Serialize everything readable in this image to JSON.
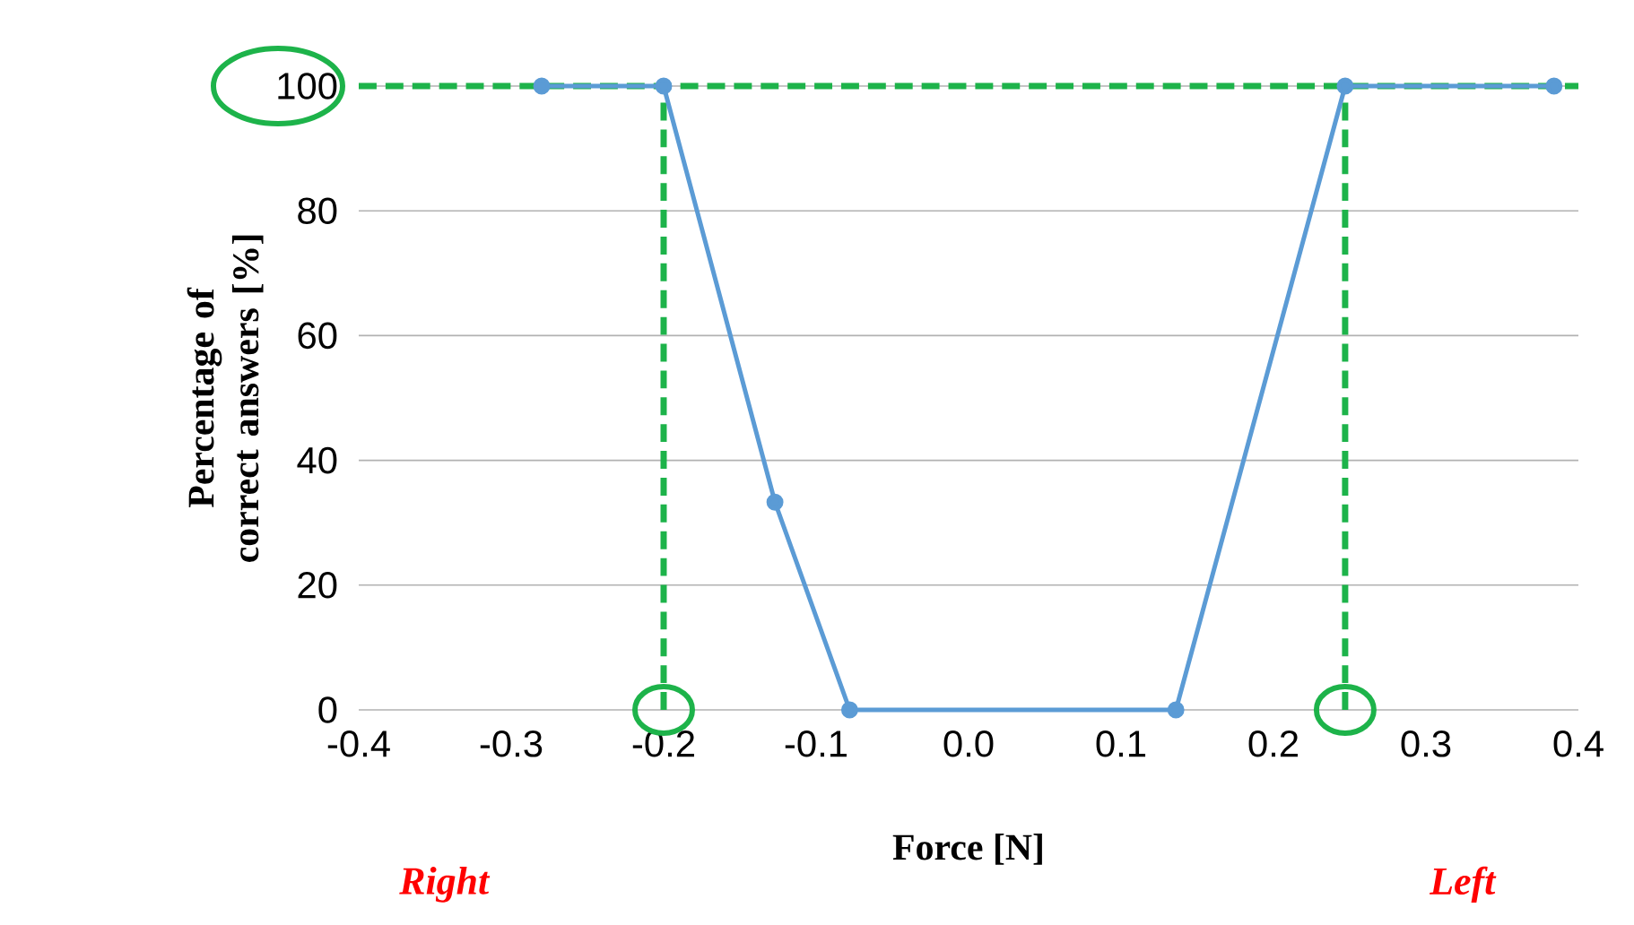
{
  "chart_data": {
    "type": "line",
    "xlabel": "Force [N]",
    "ylabel": "Percentage of correct answers [%]",
    "annotations": [
      "Right",
      "Left"
    ],
    "series": [
      {
        "color": "#5b9bd5",
        "x": [
          -0.28,
          -0.2,
          -0.127,
          -0.078,
          0.136,
          0.247,
          0.384
        ],
        "values": [
          100,
          100,
          33.3,
          0,
          0,
          100,
          100
        ]
      }
    ],
    "xlim": [
      -0.4,
      0.4
    ],
    "xticks": [
      {
        "value": -0.4,
        "label": "-0.4"
      },
      {
        "value": -0.3,
        "label": "-0.3"
      },
      {
        "value": -0.2,
        "label": "-0.2"
      },
      {
        "value": -0.1,
        "label": "-0.1"
      },
      {
        "value": 0,
        "label": "0.0"
      },
      {
        "value": 0.1,
        "label": "0.1"
      },
      {
        "value": 0.2,
        "label": "0.2"
      },
      {
        "value": 0.3,
        "label": "0.3"
      },
      {
        "value": 0.4,
        "label": "0.4"
      }
    ],
    "ylim": [
      0,
      100
    ],
    "yticks": [
      0,
      20,
      40,
      60,
      80,
      100
    ],
    "ref_lines": [
      {
        "axis": "x",
        "value": -0.2,
        "color": "#1db34a",
        "line_style": "dashed"
      },
      {
        "axis": "x",
        "value": 0.247,
        "color": "#1db34a",
        "line_style": "dashed"
      },
      {
        "axis": "y",
        "value": 100,
        "color": "#1db34a",
        "line_style": "dashed"
      }
    ],
    "grid": "y",
    "marker": "circle",
    "line_style": "solid"
  }
}
